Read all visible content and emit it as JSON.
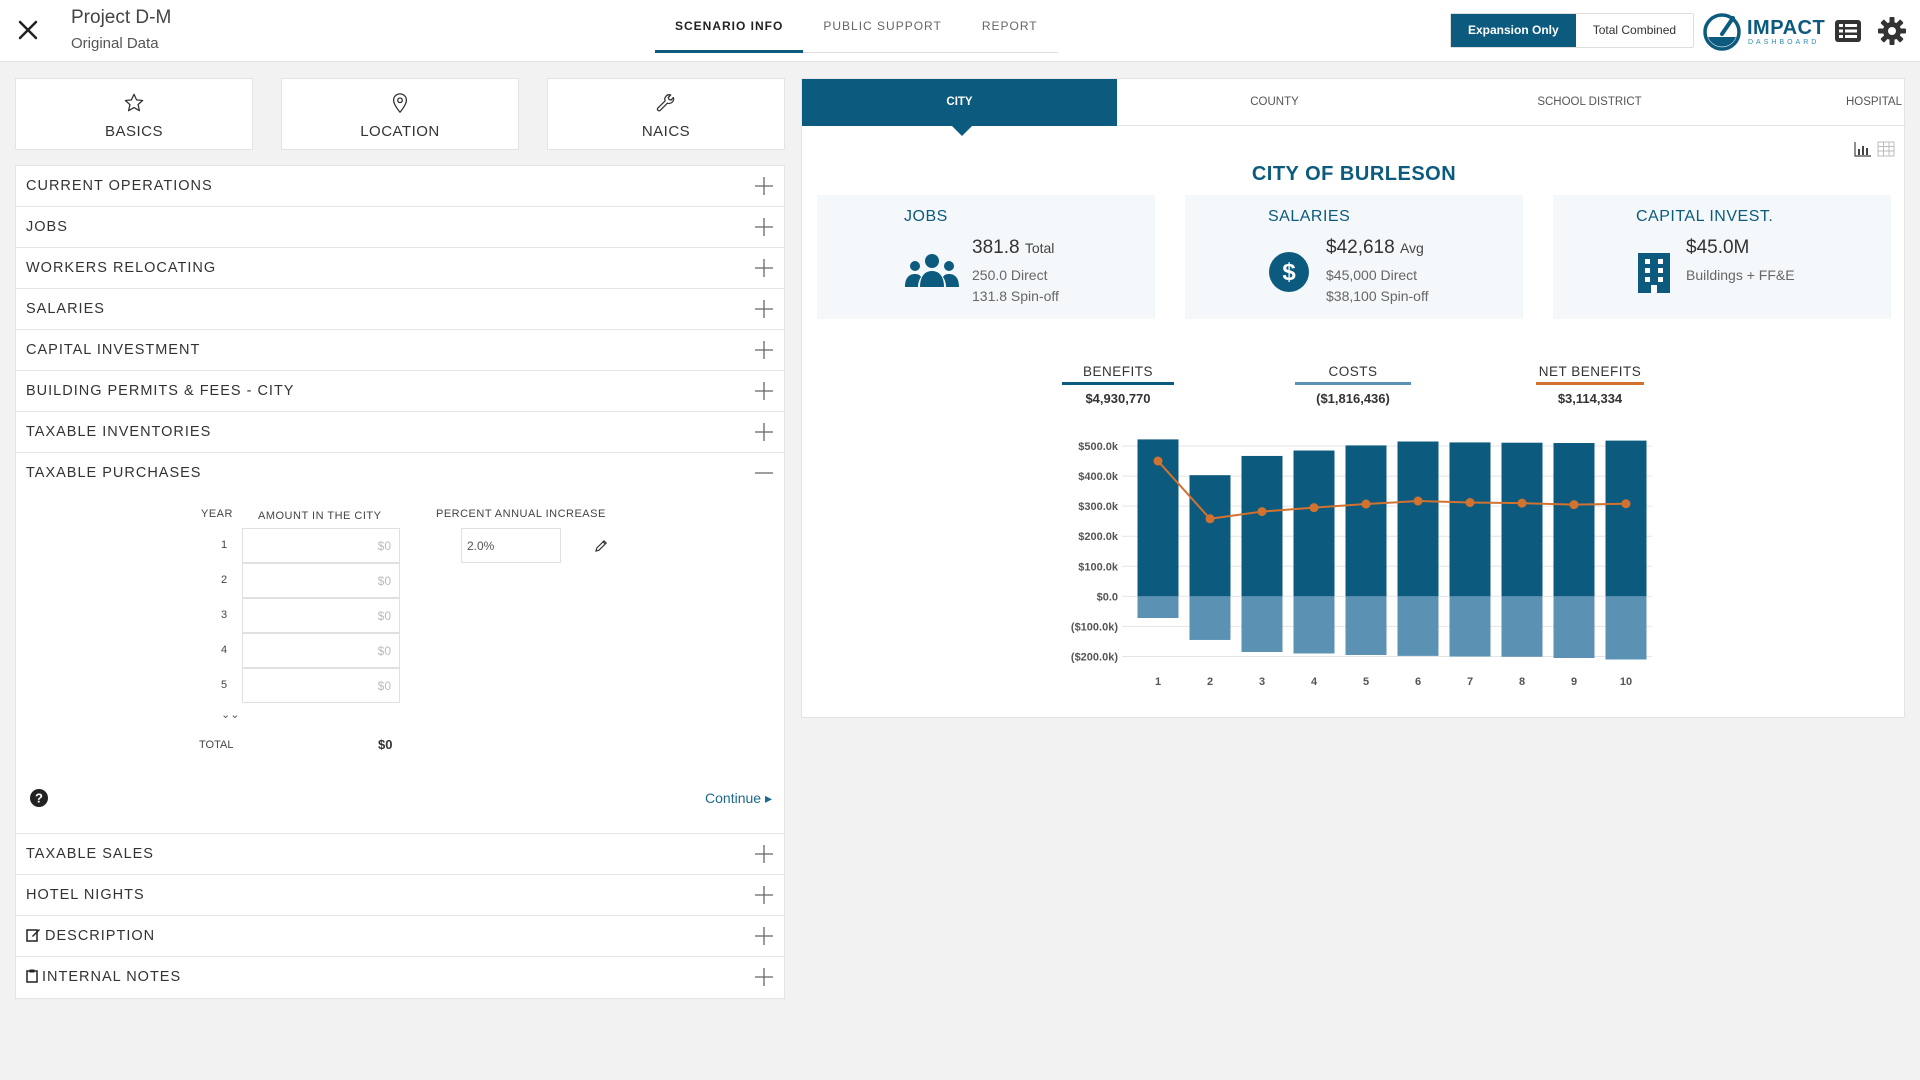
{
  "header": {
    "project_title": "Project D-M",
    "project_subtitle": "Original Data",
    "tabs": [
      {
        "label": "SCENARIO INFO",
        "active": true
      },
      {
        "label": "PUBLIC SUPPORT",
        "active": false
      },
      {
        "label": "REPORT",
        "active": false
      }
    ],
    "toggle": {
      "expansion_only": "Expansion Only",
      "total_combined": "Total Combined"
    },
    "logo": {
      "text": "IMPACT",
      "sub": "DASHBOARD"
    }
  },
  "colors": {
    "primary": "#0c5a7e",
    "costs": "#5b91b3",
    "net": "#d2722f"
  },
  "left": {
    "cards": [
      {
        "label": "BASICS",
        "icon": "star-icon"
      },
      {
        "label": "LOCATION",
        "icon": "map-pin-icon"
      },
      {
        "label": "NAICS",
        "icon": "wrench-icon"
      }
    ],
    "sections_top": [
      "CURRENT OPERATIONS",
      "JOBS",
      "WORKERS RELOCATING",
      "SALARIES",
      "CAPITAL INVESTMENT",
      "BUILDING PERMITS & FEES - CITY",
      "TAXABLE INVENTORIES"
    ],
    "taxable_purchases": {
      "label": "TAXABLE PURCHASES",
      "year_header": "YEAR",
      "amount_header": "AMOUNT IN THE CITY",
      "percent_header": "PERCENT ANNUAL INCREASE",
      "percent_value": "2.0%",
      "years": [
        "1",
        "2",
        "3",
        "4",
        "5"
      ],
      "amount_placeholder": "$0",
      "total_label": "TOTAL",
      "total_value": "$0",
      "continue_label": "Continue"
    },
    "sections_bottom": [
      "TAXABLE SALES",
      "HOTEL NIGHTS"
    ],
    "description_label": "DESCRIPTION",
    "notes_label": "INTERNAL NOTES"
  },
  "right": {
    "juris_tabs": [
      "CITY",
      "COUNTY",
      "SCHOOL DISTRICT",
      "HOSPITAL"
    ],
    "title": "CITY OF BURLESON",
    "jobs": {
      "label": "JOBS",
      "value": "381.8",
      "unit": "Total",
      "line1": "250.0 Direct",
      "line2": "131.8 Spin-off"
    },
    "salaries": {
      "label": "SALARIES",
      "value": "$42,618",
      "unit": "Avg",
      "line1": "$45,000 Direct",
      "line2": "$38,100 Spin-off"
    },
    "capital": {
      "label": "CAPITAL INVEST.",
      "value": "$45.0M",
      "line1": "Buildings + FF&E"
    },
    "legend": {
      "benefits": {
        "label": "BENEFITS",
        "value": "$4,930,770"
      },
      "costs": {
        "label": "COSTS",
        "value": "($1,816,436)"
      },
      "net": {
        "label": "NET BENEFITS",
        "value": "$3,114,334"
      }
    }
  },
  "chart_data": {
    "type": "bar",
    "categories": [
      "1",
      "2",
      "3",
      "4",
      "5",
      "6",
      "7",
      "8",
      "9",
      "10"
    ],
    "series": [
      {
        "name": "BENEFITS",
        "values": [
          522,
          403,
          467,
          485,
          502,
          515,
          512,
          511,
          510,
          518
        ]
      },
      {
        "name": "COSTS",
        "values": [
          -72,
          -145,
          -185,
          -190,
          -195,
          -198,
          -200,
          -201,
          -205,
          -210
        ]
      },
      {
        "name": "NET BENEFITS",
        "values": [
          450,
          258,
          282,
          295,
          307,
          317,
          312,
          310,
          305,
          308
        ]
      }
    ],
    "yticks": [
      "$500.0k",
      "$400.0k",
      "$300.0k",
      "$200.0k",
      "$100.0k",
      "$0.0",
      "($100.0k)",
      "($200.0k)"
    ],
    "ytick_values": [
      500,
      400,
      300,
      200,
      100,
      0,
      -100,
      -200
    ],
    "ylim": [
      -215,
      530
    ],
    "unit": "thousands of dollars"
  }
}
